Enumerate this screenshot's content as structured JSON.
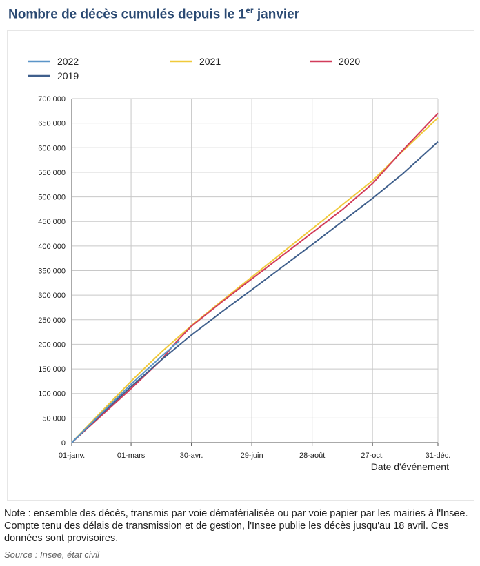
{
  "page": {
    "title_main": "Nombre de décès cumulés depuis le 1",
    "title_sup": "er",
    "title_end": " janvier",
    "note": "Note : ensemble des décès, transmis par voie dématérialisée ou par voie papier par les mairies à l'Insee. Compte tenu des délais de transmission et de gestion, l'Insee publie les décès jusqu'au 18 avril. Ces données sont provisoires.",
    "source": "Source : Insee, état civil"
  },
  "chart_data": {
    "type": "line",
    "title": "Nombre de décès cumulés depuis le 1er janvier",
    "xlabel": "Date d'événement",
    "ylabel": "",
    "x_ticks": [
      {
        "day": 1,
        "label": "01-janv."
      },
      {
        "day": 60,
        "label": "01-mars"
      },
      {
        "day": 120,
        "label": "30-avr."
      },
      {
        "day": 180,
        "label": "29-juin"
      },
      {
        "day": 240,
        "label": "28-août"
      },
      {
        "day": 300,
        "label": "27-oct."
      },
      {
        "day": 365,
        "label": "31-déc."
      }
    ],
    "xlim": [
      1,
      365
    ],
    "ylim": [
      0,
      700000
    ],
    "y_ticks": [
      0,
      50000,
      100000,
      150000,
      200000,
      250000,
      300000,
      350000,
      400000,
      450000,
      500000,
      550000,
      600000,
      650000,
      700000
    ],
    "y_tick_labels": [
      "0",
      "50 000",
      "100 000",
      "150 000",
      "200 000",
      "250 000",
      "300 000",
      "350 000",
      "400 000",
      "450 000",
      "500 000",
      "550 000",
      "600 000",
      "650 000",
      "700 000"
    ],
    "grid": true,
    "legend_position": "top",
    "series": [
      {
        "name": "2022",
        "color": "#5b95c8",
        "x": [
          1,
          30,
          60,
          90,
          108
        ],
        "y": [
          0,
          59000,
          119000,
          175000,
          207000
        ]
      },
      {
        "name": "2021",
        "color": "#f0c93a",
        "x": [
          1,
          30,
          60,
          90,
          120,
          150,
          180,
          210,
          240,
          270,
          300,
          330,
          365
        ],
        "y": [
          0,
          62000,
          125000,
          184000,
          238000,
          288000,
          337000,
          386000,
          435000,
          484000,
          533000,
          593000,
          661000
        ]
      },
      {
        "name": "2020",
        "color": "#d23c5a",
        "x": [
          1,
          30,
          60,
          90,
          105,
          120,
          150,
          180,
          210,
          240,
          270,
          300,
          330,
          365
        ],
        "y": [
          0,
          54000,
          110000,
          168000,
          205000,
          237000,
          286000,
          333000,
          380000,
          427000,
          474000,
          527000,
          595000,
          670000
        ]
      },
      {
        "name": "2019",
        "color": "#3f5f8c",
        "x": [
          1,
          30,
          60,
          90,
          120,
          150,
          180,
          210,
          240,
          270,
          300,
          330,
          365
        ],
        "y": [
          0,
          57000,
          114000,
          168000,
          219000,
          266000,
          311000,
          357000,
          403000,
          450000,
          497000,
          547000,
          612000
        ]
      }
    ]
  }
}
